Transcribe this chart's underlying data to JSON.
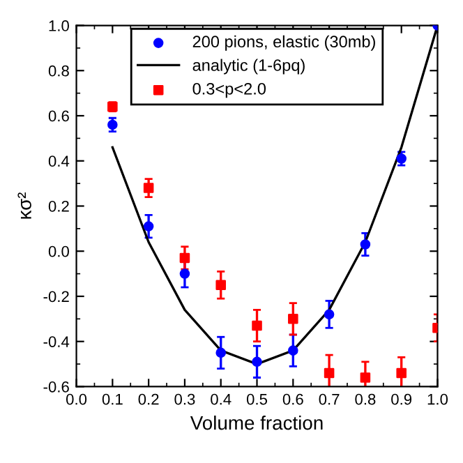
{
  "chart_data": {
    "type": "scatter",
    "xlabel": "Volume fraction",
    "ylabel": "κσ²",
    "xlim": [
      0.0,
      1.0
    ],
    "ylim": [
      -0.6,
      1.0
    ],
    "xticks": [
      {
        "value": 0,
        "label": "0.0"
      },
      0.1,
      0.2,
      0.3,
      0.4,
      0.5,
      0.6,
      0.7,
      0.8,
      0.9,
      {
        "value": 1,
        "label": "1.0"
      }
    ],
    "yticks": [
      -0.6,
      -0.4,
      -0.2,
      {
        "value": 0,
        "label": "0.0"
      },
      0.2,
      0.4,
      0.6,
      0.8,
      {
        "value": 1,
        "label": "1.0"
      }
    ],
    "legend": "top",
    "grid": false,
    "series": [
      {
        "name": "200 pions, elastic (30mb)",
        "marker": "circle",
        "color": "#0000ff",
        "x": [
          0.1,
          0.2,
          0.3,
          0.4,
          0.5,
          0.6,
          0.7,
          0.8,
          0.9,
          1.0
        ],
        "values": [
          0.56,
          0.11,
          -0.1,
          -0.45,
          -0.49,
          -0.44,
          -0.28,
          0.03,
          0.41,
          1.0
        ],
        "errors": [
          0.03,
          0.05,
          0.06,
          0.07,
          0.07,
          0.07,
          0.06,
          0.05,
          0.03,
          null
        ]
      },
      {
        "name": "analytic (1-6pq)",
        "type": "line",
        "marker": "none",
        "line_style": "solid",
        "color": "#000000",
        "x": [
          0.1,
          0.2,
          0.3,
          0.4,
          0.5,
          0.6,
          0.7,
          0.8,
          0.9,
          1.0
        ],
        "values": [
          0.46,
          0.04,
          -0.26,
          -0.44,
          -0.5,
          -0.44,
          -0.26,
          0.04,
          0.46,
          1.0
        ]
      },
      {
        "name": "0.3<p<2.0",
        "marker": "square",
        "color": "#ff0000",
        "x": [
          0.1,
          0.2,
          0.3,
          0.4,
          0.5,
          0.6,
          0.7,
          0.8,
          0.9,
          1.0
        ],
        "values": [
          0.64,
          0.28,
          -0.03,
          -0.15,
          -0.33,
          -0.3,
          -0.54,
          -0.56,
          -0.54,
          -0.34
        ],
        "errors": [
          0.02,
          0.04,
          0.05,
          0.06,
          0.07,
          0.07,
          0.08,
          0.07,
          0.07,
          0.06
        ]
      }
    ]
  }
}
